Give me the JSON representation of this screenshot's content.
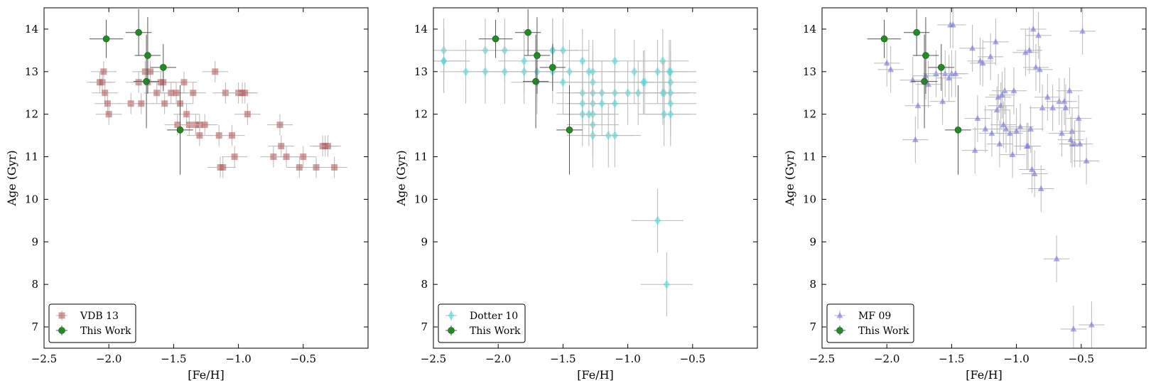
{
  "chart_data": [
    {
      "type": "scatter",
      "xlabel": "[Fe/H]",
      "ylabel": "Age (Gyr)",
      "xlim": [
        -2.5,
        0.0
      ],
      "ylim": [
        6.5,
        14.5
      ],
      "xticks": [
        "−2.5",
        "−2.0",
        "−1.5",
        "−1.0",
        "−0.5"
      ],
      "yticks": [
        "7",
        "8",
        "9",
        "10",
        "11",
        "12",
        "13",
        "14"
      ],
      "legend_position": "lower-left",
      "series": [
        {
          "name": "VDB 13",
          "marker": "square",
          "color": "#b05050",
          "xerr": 0.1,
          "yerr": 0.25,
          "x": [
            -2.07,
            -2.05,
            -2.04,
            -2.03,
            -2.01,
            -2.0,
            -1.83,
            -1.77,
            -1.75,
            -1.72,
            -1.7,
            -1.68,
            -1.63,
            -1.6,
            -1.58,
            -1.57,
            -1.52,
            -1.48,
            -1.47,
            -1.45,
            -1.42,
            -1.4,
            -1.38,
            -1.35,
            -1.33,
            -1.3,
            -1.3,
            -1.26,
            -1.18,
            -1.15,
            -1.14,
            -1.12,
            -1.1,
            -1.05,
            -1.03,
            -1.0,
            -0.97,
            -0.95,
            -0.93,
            -0.73,
            -0.68,
            -0.67,
            -0.63,
            -0.53,
            -0.5,
            -0.4,
            -0.35,
            -0.33,
            -0.31,
            -0.26
          ],
          "y": [
            12.75,
            12.75,
            13.0,
            12.5,
            12.25,
            12.0,
            12.25,
            12.75,
            12.25,
            13.0,
            12.75,
            13.0,
            12.5,
            12.75,
            12.75,
            12.25,
            12.5,
            12.5,
            11.75,
            12.25,
            12.75,
            12.0,
            11.75,
            12.5,
            11.75,
            11.75,
            11.5,
            11.75,
            13.0,
            11.5,
            10.75,
            10.75,
            12.5,
            11.5,
            11.0,
            12.5,
            12.5,
            12.5,
            12.0,
            11.0,
            11.75,
            11.25,
            11.0,
            10.75,
            11.0,
            10.75,
            11.25,
            11.25,
            11.25,
            10.75
          ]
        },
        {
          "name": "This Work",
          "marker": "circle",
          "color": "#228b22",
          "x": [
            -2.02,
            -1.77,
            -1.71,
            -1.7,
            -1.58,
            -1.45
          ],
          "y": [
            13.77,
            13.92,
            12.77,
            13.38,
            13.1,
            11.63
          ],
          "xerr": [
            0.13,
            0.1,
            0.1,
            0.1,
            0.1,
            0.1
          ],
          "yerr": [
            0.45,
            0.55,
            1.1,
            0.9,
            0.55,
            1.05
          ]
        }
      ]
    },
    {
      "type": "scatter",
      "xlabel": "[Fe/H]",
      "ylabel": "Age (Gyr)",
      "xlim": [
        -2.5,
        0.0
      ],
      "ylim": [
        6.5,
        14.5
      ],
      "xticks": [
        "−2.5",
        "−2.0",
        "−1.5",
        "−1.0",
        "−0.5"
      ],
      "yticks": [
        "7",
        "8",
        "9",
        "10",
        "11",
        "12",
        "13",
        "14"
      ],
      "legend_position": "lower-left",
      "series": [
        {
          "name": "Dotter 10",
          "marker": "diamond",
          "color": "#40d8d8",
          "xerr": 0.2,
          "yerr": 0.75,
          "x": [
            -2.42,
            -2.42,
            -2.42,
            -2.25,
            -2.1,
            -2.1,
            -1.95,
            -1.95,
            -1.8,
            -1.8,
            -1.7,
            -1.7,
            -1.58,
            -1.58,
            -1.58,
            -1.5,
            -1.5,
            -1.45,
            -1.35,
            -1.35,
            -1.35,
            -1.35,
            -1.3,
            -1.3,
            -1.27,
            -1.27,
            -1.27,
            -1.27,
            -1.27,
            -1.27,
            -1.27,
            -1.2,
            -1.2,
            -1.15,
            -1.1,
            -1.1,
            -1.1,
            -1.1,
            -1.0,
            -0.95,
            -0.92,
            -0.88,
            -0.87,
            -0.77,
            -0.77,
            -0.73,
            -0.73,
            -0.72,
            -0.72,
            -0.7,
            -0.68,
            -0.67,
            -0.67,
            -0.67,
            -0.67,
            -0.67
          ],
          "y": [
            13.5,
            13.25,
            13.25,
            13.0,
            13.5,
            13.0,
            13.5,
            13.0,
            13.25,
            13.0,
            13.0,
            12.75,
            13.5,
            13.5,
            13.0,
            13.5,
            12.75,
            13.0,
            13.25,
            12.5,
            12.25,
            12.0,
            13.0,
            12.0,
            13.0,
            12.75,
            12.5,
            12.25,
            12.0,
            11.75,
            11.5,
            12.5,
            12.25,
            11.5,
            13.25,
            12.5,
            12.25,
            11.5,
            12.5,
            13.0,
            12.5,
            12.75,
            12.75,
            13.0,
            9.5,
            13.25,
            12.5,
            12.5,
            12.0,
            8.0,
            13.0,
            12.75,
            12.5,
            12.25,
            12.0,
            13.0
          ]
        },
        {
          "name": "This Work",
          "marker": "circle",
          "color": "#228b22",
          "x": [
            -2.02,
            -1.77,
            -1.71,
            -1.7,
            -1.58,
            -1.45
          ],
          "y": [
            13.77,
            13.92,
            12.77,
            13.38,
            13.1,
            11.63
          ],
          "xerr": [
            0.13,
            0.1,
            0.1,
            0.1,
            0.1,
            0.1
          ],
          "yerr": [
            0.45,
            0.55,
            1.1,
            0.9,
            0.55,
            1.05
          ]
        }
      ]
    },
    {
      "type": "scatter",
      "xlabel": "[Fe/H]",
      "ylabel": "Age (Gyr)",
      "xlim": [
        -2.5,
        0.0
      ],
      "ylim": [
        6.5,
        14.5
      ],
      "xticks": [
        "−2.5",
        "−2.0",
        "−1.5",
        "−1.0",
        "−0.5"
      ],
      "yticks": [
        "7",
        "8",
        "9",
        "10",
        "11",
        "12",
        "13",
        "14"
      ],
      "legend_position": "lower-left",
      "series": [
        {
          "name": "MF 09",
          "marker": "triangle",
          "color": "#6a6ae0",
          "xerr": 0.1,
          "yerr": 0.55,
          "x": [
            -2.0,
            -1.97,
            -1.8,
            -1.78,
            -1.76,
            -1.7,
            -1.68,
            -1.62,
            -1.57,
            -1.55,
            -1.52,
            -1.51,
            -1.5,
            -1.49,
            -1.47,
            -1.34,
            -1.32,
            -1.3,
            -1.28,
            -1.26,
            -1.24,
            -1.2,
            -1.19,
            -1.16,
            -1.15,
            -1.14,
            -1.13,
            -1.12,
            -1.11,
            -1.1,
            -1.09,
            -1.08,
            -1.05,
            -1.03,
            -1.02,
            -1.0,
            -0.97,
            -0.93,
            -0.92,
            -0.91,
            -0.9,
            -0.89,
            -0.88,
            -0.87,
            -0.86,
            -0.85,
            -0.83,
            -0.82,
            -0.81,
            -0.8,
            -0.76,
            -0.72,
            -0.69,
            -0.67,
            -0.65,
            -0.63,
            -0.62,
            -0.59,
            -0.58,
            -0.57,
            -0.57,
            -0.56,
            -0.55,
            -0.52,
            -0.51,
            -0.49,
            -0.46,
            -0.42
          ],
          "y": [
            13.2,
            13.05,
            12.8,
            11.4,
            12.2,
            12.9,
            12.7,
            12.95,
            12.3,
            12.95,
            12.85,
            14.1,
            12.95,
            14.1,
            12.95,
            13.55,
            11.15,
            11.9,
            13.25,
            13.2,
            11.65,
            13.35,
            11.55,
            13.7,
            12.1,
            12.4,
            11.3,
            12.2,
            12.45,
            11.75,
            12.55,
            11.65,
            11.55,
            11.05,
            12.55,
            11.6,
            11.7,
            13.45,
            11.25,
            11.25,
            13.5,
            11.65,
            10.7,
            14.0,
            10.6,
            13.1,
            13.85,
            13.05,
            10.25,
            12.15,
            12.4,
            12.15,
            8.6,
            12.3,
            11.55,
            12.3,
            12.15,
            12.55,
            11.4,
            11.6,
            11.3,
            6.95,
            11.3,
            11.9,
            11.3,
            13.95,
            10.9,
            7.05
          ],
          "yerr_list_note": ""
        },
        {
          "name": "This Work",
          "marker": "circle",
          "color": "#228b22",
          "x": [
            -2.02,
            -1.77,
            -1.71,
            -1.7,
            -1.58,
            -1.45
          ],
          "y": [
            13.77,
            13.92,
            12.77,
            13.38,
            13.1,
            11.63
          ],
          "xerr": [
            0.13,
            0.1,
            0.1,
            0.1,
            0.1,
            0.1
          ],
          "yerr": [
            0.45,
            0.55,
            1.1,
            0.9,
            0.55,
            1.05
          ]
        }
      ]
    }
  ]
}
